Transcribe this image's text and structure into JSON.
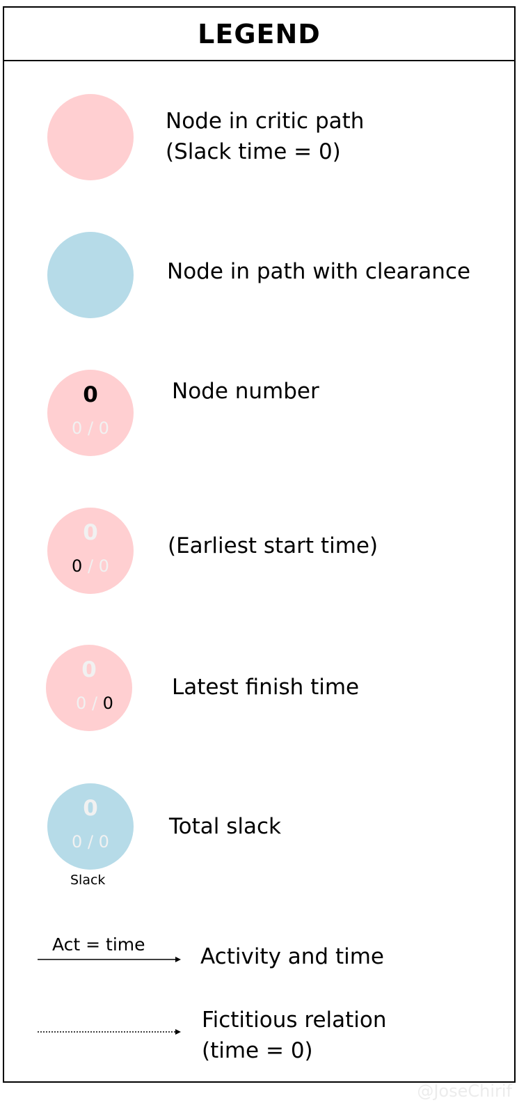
{
  "colors": {
    "critical_node": "#ffcfd1",
    "clearance_node": "#b6dbe8",
    "faded_text": "#f1f1f1",
    "text": "#000000"
  },
  "title": "LEGEND",
  "items": [
    {
      "node_color": "critical",
      "label_line1": "Node in critic path",
      "label_line2": "(Slack time = 0)"
    },
    {
      "node_color": "clearance",
      "label_line1": "Node in path with clearance"
    },
    {
      "node_color": "critical",
      "node_number": "0",
      "earliest": "0",
      "separator": " / ",
      "latest": "0",
      "label_line1": "Node number"
    },
    {
      "node_color": "critical",
      "node_number": "0",
      "earliest": "0",
      "separator": " / ",
      "latest": "0",
      "label_line1": "(Earliest start time)"
    },
    {
      "node_color": "critical",
      "node_number": "0",
      "earliest": "0",
      "separator": " / ",
      "latest": "0",
      "label_line1": "Latest finish time"
    },
    {
      "node_color": "clearance",
      "node_number": "0",
      "earliest": "0",
      "separator": " / ",
      "latest": "0",
      "slack_label": "Slack",
      "label_line1": "Total slack"
    }
  ],
  "activity": {
    "arrow_label": "Act = time",
    "label": "Activity and time"
  },
  "fictitious": {
    "label_line1": "Fictitious relation",
    "label_line2": "(time = 0)"
  },
  "watermark": "@JoseChirif"
}
